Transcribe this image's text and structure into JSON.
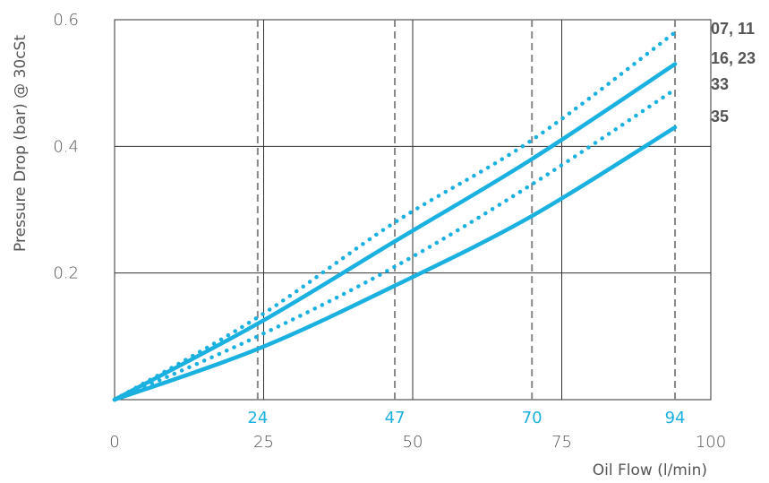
{
  "chart_data": {
    "type": "line",
    "xlabel": "Oil Flow (l/min)",
    "ylabel": "Pressure Drop (bar) @ 30cSt",
    "xlim": [
      0,
      100
    ],
    "ylim": [
      0,
      0.6
    ],
    "x_ticks": [
      {
        "value": 0,
        "label": "0"
      },
      {
        "value": 25,
        "label": "25"
      },
      {
        "value": 50,
        "label": "50"
      },
      {
        "value": 75,
        "label": "75"
      },
      {
        "value": 100,
        "label": "100"
      }
    ],
    "y_ticks": [
      {
        "value": 0.2,
        "label": "0.2"
      },
      {
        "value": 0.4,
        "label": "0.4"
      },
      {
        "value": 0.6,
        "label": "0.6"
      }
    ],
    "grid": true,
    "reference_lines": [
      {
        "x": 24,
        "label": "24"
      },
      {
        "x": 47,
        "label": "47"
      },
      {
        "x": 70,
        "label": "70"
      },
      {
        "x": 94,
        "label": "94"
      }
    ],
    "series": [
      {
        "name": "07, 11",
        "style": "dotted",
        "x": [
          0,
          24,
          47,
          70,
          94
        ],
        "y": [
          0,
          0.13,
          0.28,
          0.41,
          0.58
        ]
      },
      {
        "name": "16, 23",
        "style": "solid",
        "x": [
          0,
          24,
          47,
          70,
          94
        ],
        "y": [
          0,
          0.12,
          0.25,
          0.38,
          0.53
        ]
      },
      {
        "name": "33",
        "style": "dotted",
        "x": [
          0,
          24,
          47,
          70,
          94
        ],
        "y": [
          0,
          0.1,
          0.21,
          0.34,
          0.49
        ]
      },
      {
        "name": "35",
        "style": "solid",
        "x": [
          0,
          24,
          47,
          70,
          94
        ],
        "y": [
          0,
          0.08,
          0.18,
          0.29,
          0.43
        ]
      }
    ],
    "colors": {
      "line": "#1ab0e0",
      "grid": "#333333",
      "ref_line": "#888888",
      "text": "#555555"
    }
  }
}
